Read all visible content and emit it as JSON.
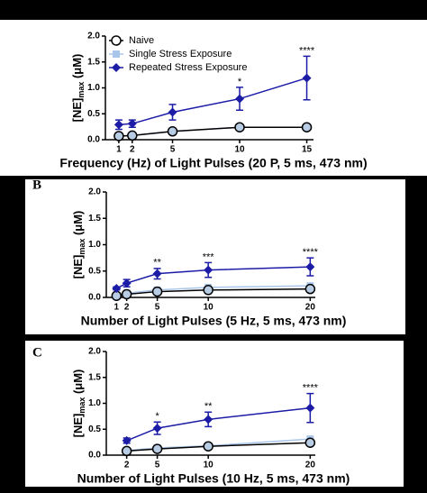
{
  "chart_data": [
    {
      "type": "line",
      "y_label": {
        "main": "[NE]",
        "sub": "max",
        "unit": " (μM)"
      },
      "x_label": "Frequency (Hz) of Light Pulses (20 P, 5 ms, 473 nm)",
      "x": [
        1,
        2,
        5,
        10,
        15
      ],
      "xlim": [
        0,
        15.5
      ],
      "xticks": [
        1,
        2,
        5,
        10,
        15
      ],
      "ylim": [
        0,
        2
      ],
      "yticks": [
        {
          "value": 0,
          "label": "0.0"
        },
        0.5,
        {
          "value": 1,
          "label": "1.0"
        },
        1.5,
        {
          "value": 2,
          "label": "2.0"
        }
      ],
      "legend": "top-left",
      "series": [
        {
          "name": "Naive",
          "color": "#000000",
          "values": [
            0.07,
            0.08,
            0.16,
            0.24,
            0.24
          ]
        },
        {
          "name": "Single Stress Exposure",
          "color": "#a9c6ea",
          "values": [
            0.07,
            0.08,
            0.16,
            0.24,
            0.24
          ]
        },
        {
          "name": "Repeated Stress Exposure",
          "color": "#1c1ca6",
          "values": [
            0.29,
            0.31,
            0.53,
            0.79,
            1.19
          ],
          "errors": [
            0.09,
            0.07,
            0.15,
            0.22,
            0.42
          ]
        }
      ],
      "annotations": [
        {
          "text": "*",
          "x": 10
        },
        {
          "text": "****",
          "x": 15
        }
      ]
    },
    {
      "type": "line",
      "panel": "B",
      "y_label": {
        "main": "[NE]",
        "sub": "max",
        "unit": " (μM)"
      },
      "x_label": "Number of Light Pulses (5 Hz, 5 ms, 473 nm)",
      "x": [
        1,
        2,
        5,
        10,
        20
      ],
      "xlim": [
        0,
        20.5
      ],
      "xticks": [
        1,
        2,
        5,
        10,
        20
      ],
      "ylim": [
        0,
        2
      ],
      "yticks": [
        {
          "value": 0,
          "label": "0.0"
        },
        0.5,
        {
          "value": 1,
          "label": "1.0"
        },
        1.5,
        {
          "value": 2,
          "label": "2.0"
        }
      ],
      "series": [
        {
          "color": "#000000",
          "values": [
            0.03,
            0.06,
            0.11,
            0.14,
            0.16
          ]
        },
        {
          "color": "#a9c6ea",
          "values": [
            0.04,
            0.08,
            0.14,
            0.19,
            0.22
          ]
        },
        {
          "color": "#1c1ca6",
          "values": [
            0.17,
            0.27,
            0.45,
            0.52,
            0.58
          ],
          "errors": [
            0.03,
            0.07,
            0.1,
            0.14,
            0.17
          ]
        }
      ],
      "annotations": [
        {
          "text": "**",
          "x": 5
        },
        {
          "text": "***",
          "x": 10
        },
        {
          "text": "****",
          "x": 20
        }
      ]
    },
    {
      "type": "line",
      "panel": "C",
      "y_label": {
        "main": "[NE]",
        "sub": "max",
        "unit": " (μM)"
      },
      "x_label": "Number of Light Pulses (10 Hz, 5 ms, 473 nm)",
      "x": [
        2,
        5,
        10,
        20
      ],
      "xlim": [
        0,
        20.5
      ],
      "xticks": [
        2,
        5,
        10,
        20
      ],
      "ylim": [
        0,
        2
      ],
      "yticks": [
        {
          "value": 0,
          "label": "0.0"
        },
        0.5,
        {
          "value": 1,
          "label": "1.0"
        },
        1.5,
        {
          "value": 2,
          "label": "2.0"
        }
      ],
      "series": [
        {
          "color": "#000000",
          "values": [
            0.08,
            0.12,
            0.17,
            0.24
          ]
        },
        {
          "color": "#a9c6ea",
          "values": [
            0.09,
            0.14,
            0.18,
            0.31
          ]
        },
        {
          "color": "#1c1ca6",
          "values": [
            0.28,
            0.52,
            0.69,
            0.91
          ],
          "errors": [
            0.05,
            0.12,
            0.14,
            0.28
          ]
        }
      ],
      "annotations": [
        {
          "text": "*",
          "x": 5
        },
        {
          "text": "**",
          "x": 10
        },
        {
          "text": "****",
          "x": 20
        }
      ]
    }
  ]
}
